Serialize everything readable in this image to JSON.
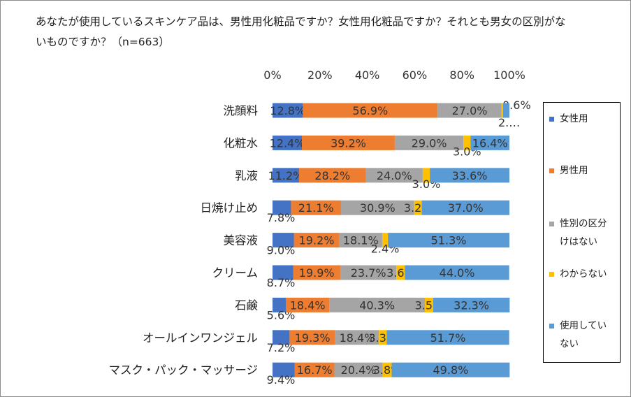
{
  "chart_data": {
    "type": "bar",
    "orientation": "horizontal",
    "stacked": true,
    "title": "あなたが使用しているスキンケア品は、男性用化粧品ですか？女性用化粧品ですか？それとも男女の区別がないものですか？（n=663）",
    "categories": [
      "洗顔料",
      "化粧水",
      "乳液",
      "日焼け止め",
      "美容液",
      "クリーム",
      "石鹸",
      "オールインワンジェル",
      "マスク・パック・マッサージ"
    ],
    "series": [
      {
        "name": "女性用",
        "color": "#4472c4",
        "values": [
          12.8,
          12.4,
          11.2,
          7.8,
          9.0,
          8.7,
          5.6,
          7.2,
          9.4
        ],
        "labels": [
          "12.8%",
          "12.4%",
          "11.2%",
          "7.8%",
          "9.0%",
          "8.7%",
          "5.6%",
          "7.2%",
          "9.4%"
        ]
      },
      {
        "name": "男性用",
        "color": "#ed7d31",
        "values": [
          56.9,
          39.2,
          28.2,
          21.1,
          19.2,
          19.9,
          18.4,
          19.3,
          16.7
        ],
        "labels": [
          "56.9%",
          "39.2%",
          "28.2%",
          "21.1%",
          "19.2%",
          "19.9%",
          "18.4%",
          "19.3%",
          "16.7%"
        ]
      },
      {
        "name": "性別の区分けはない",
        "color": "#a5a5a5",
        "values": [
          27.0,
          29.0,
          24.0,
          30.9,
          18.1,
          23.7,
          40.3,
          18.4,
          20.4
        ],
        "labels": [
          "27.0%",
          "29.0%",
          "24.0%",
          "30.9%",
          "18.1%",
          "23.7%",
          "40.3%",
          "18.4%",
          "20.4%"
        ]
      },
      {
        "name": "わからない",
        "color": "#ffc000",
        "values": [
          0.6,
          3.0,
          3.0,
          3.2,
          2.4,
          3.6,
          3.5,
          3.3,
          3.8
        ],
        "labels": [
          "0.6%",
          "3.0%",
          "3.0%",
          "3.2%",
          "2.4%",
          "3.6%",
          "3.5%",
          "3.3%",
          "3.8%"
        ]
      },
      {
        "name": "使用していない",
        "color": "#5b9bd5",
        "values": [
          2.7,
          16.4,
          33.6,
          37.0,
          51.3,
          44.0,
          32.3,
          51.7,
          49.8
        ],
        "labels": [
          "2.…",
          "16.4%",
          "33.6%",
          "37.0%",
          "51.3%",
          "44.0%",
          "32.3%",
          "51.7%",
          "49.8%"
        ]
      }
    ],
    "x_axis": {
      "ticks": [
        "0%",
        "20%",
        "40%",
        "60%",
        "80%",
        "100%"
      ],
      "range": [
        0,
        100
      ],
      "position": "top"
    },
    "legend": {
      "position": "right",
      "items": [
        "女性用",
        "男性用",
        "性別の区分けはない",
        "わからない",
        "使用していない"
      ]
    },
    "grid": false
  }
}
